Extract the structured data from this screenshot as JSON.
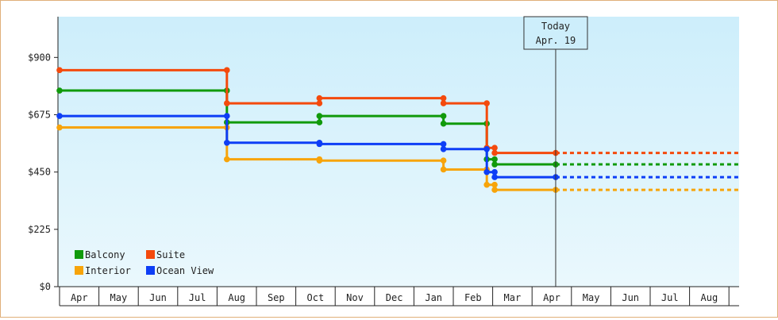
{
  "chart_data": {
    "type": "line",
    "step": true,
    "y_ticks": [
      0,
      225,
      450,
      675,
      900
    ],
    "y_tick_labels": [
      "$0",
      "$225",
      "$450",
      "$675",
      "$900"
    ],
    "ylim": [
      0,
      1060
    ],
    "x_tick_labels": [
      "Apr",
      "May",
      "Jun",
      "Jul",
      "Aug",
      "Sep",
      "Oct",
      "Nov",
      "Dec",
      "Jan",
      "Feb",
      "Mar",
      "Apr",
      "May",
      "Jun",
      "Jul",
      "Aug"
    ],
    "x_unit": "month index from first Apr",
    "xlim": [
      -0.05,
      17.3
    ],
    "grid": false,
    "legend_position": "bottom-left",
    "today": {
      "line1": "Today",
      "line2": "Apr. 19",
      "x": 12.6
    },
    "projection_end_x": 17.3,
    "series": [
      {
        "name": "Balcony",
        "color": "#109a0b",
        "points": [
          [
            0,
            770
          ],
          [
            4.25,
            770
          ],
          [
            4.25,
            645
          ],
          [
            6.6,
            645
          ],
          [
            6.6,
            670
          ],
          [
            9.75,
            670
          ],
          [
            9.75,
            640
          ],
          [
            10.85,
            640
          ],
          [
            10.85,
            500
          ],
          [
            11.05,
            500
          ],
          [
            11.05,
            480
          ],
          [
            12.6,
            480
          ]
        ]
      },
      {
        "name": "Suite",
        "color": "#f44a0d",
        "points": [
          [
            0,
            850
          ],
          [
            4.25,
            850
          ],
          [
            4.25,
            720
          ],
          [
            6.6,
            720
          ],
          [
            6.6,
            740
          ],
          [
            9.75,
            740
          ],
          [
            9.75,
            720
          ],
          [
            10.85,
            720
          ],
          [
            10.85,
            545
          ],
          [
            11.05,
            545
          ],
          [
            11.05,
            525
          ],
          [
            12.6,
            525
          ]
        ]
      },
      {
        "name": "Interior",
        "color": "#f7a40a",
        "points": [
          [
            0,
            625
          ],
          [
            4.25,
            625
          ],
          [
            4.25,
            500
          ],
          [
            6.6,
            500
          ],
          [
            6.6,
            495
          ],
          [
            9.75,
            495
          ],
          [
            9.75,
            460
          ],
          [
            10.85,
            460
          ],
          [
            10.85,
            400
          ],
          [
            11.05,
            400
          ],
          [
            11.05,
            380
          ],
          [
            12.6,
            380
          ]
        ]
      },
      {
        "name": "Ocean View",
        "color": "#0d3ef6",
        "points": [
          [
            0,
            670
          ],
          [
            4.25,
            670
          ],
          [
            4.25,
            565
          ],
          [
            6.6,
            565
          ],
          [
            6.6,
            560
          ],
          [
            9.75,
            560
          ],
          [
            9.75,
            540
          ],
          [
            10.85,
            540
          ],
          [
            10.85,
            450
          ],
          [
            11.05,
            450
          ],
          [
            11.05,
            430
          ],
          [
            12.6,
            430
          ]
        ]
      }
    ]
  }
}
